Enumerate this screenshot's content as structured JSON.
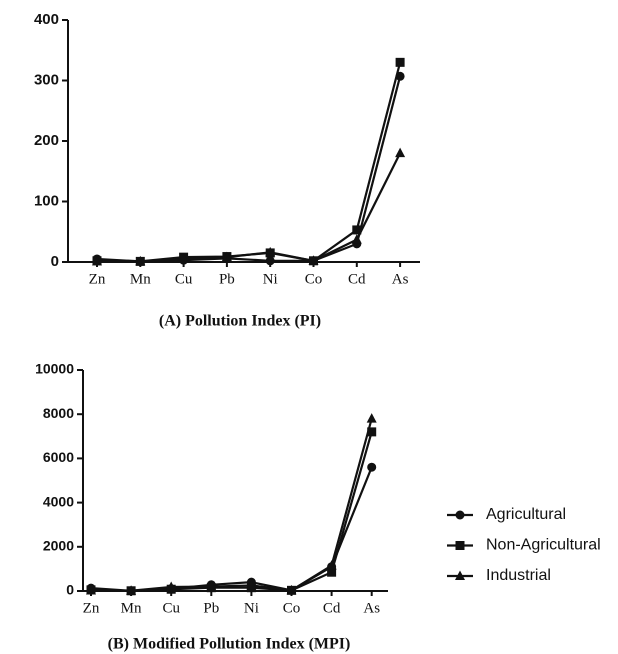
{
  "chart_data": [
    {
      "type": "line",
      "title": "(A) Pollution Index (PI)",
      "categories": [
        "Zn",
        "Mn",
        "Cu",
        "Pb",
        "Ni",
        "Co",
        "Cd",
        "As"
      ],
      "series": [
        {
          "marker": "circle",
          "color": "#111111",
          "values": [
            5,
            1,
            3,
            6,
            2,
            2,
            30,
            307
          ]
        },
        {
          "marker": "square",
          "color": "#111111",
          "values": [
            2,
            1,
            8,
            9,
            15,
            2,
            53,
            330
          ]
        },
        {
          "marker": "triangle",
          "color": "#111111",
          "values": [
            1,
            1,
            5,
            8,
            16,
            2,
            37,
            180
          ]
        }
      ],
      "ylim": [
        0,
        400
      ],
      "yticks": [
        0,
        100,
        200,
        300,
        400
      ]
    },
    {
      "type": "line",
      "title": "(B) Modified Pollution Index (MPI)",
      "categories": [
        "Zn",
        "Mn",
        "Cu",
        "Pb",
        "Ni",
        "Co",
        "Cd",
        "As"
      ],
      "series": [
        {
          "name": "Agricultural",
          "marker": "circle",
          "color": "#111111",
          "values": [
            130,
            10,
            100,
            280,
            400,
            30,
            1100,
            5600
          ]
        },
        {
          "name": "Non-Agricultural",
          "marker": "square",
          "color": "#111111",
          "values": [
            50,
            10,
            80,
            150,
            150,
            30,
            850,
            7200
          ]
        },
        {
          "name": "Industrial",
          "marker": "triangle",
          "color": "#111111",
          "values": [
            20,
            10,
            180,
            200,
            250,
            30,
            1150,
            7800
          ]
        }
      ],
      "ylim": [
        0,
        10000
      ],
      "yticks": [
        0,
        2000,
        4000,
        6000,
        8000,
        10000
      ],
      "legend": "right"
    }
  ]
}
